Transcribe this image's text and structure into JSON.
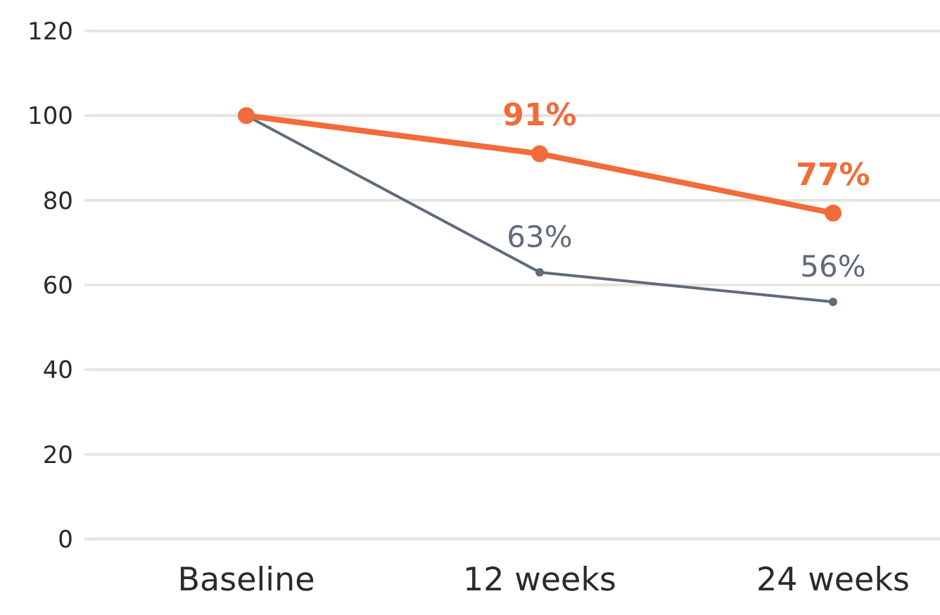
{
  "chart_data": {
    "type": "line",
    "categories": [
      "Baseline",
      "12 weeks",
      "24 weeks"
    ],
    "series": [
      {
        "color": "#f26b3a",
        "values": [
          100,
          91,
          77
        ],
        "value_labels": [
          null,
          "91%",
          "77%"
        ]
      },
      {
        "color": "#5f6b7a",
        "values": [
          100,
          63,
          56
        ],
        "value_labels": [
          null,
          "63%",
          "56%"
        ]
      }
    ],
    "ylim": [
      0,
      120
    ],
    "yticks": [
      0,
      20,
      40,
      60,
      80,
      100,
      120
    ],
    "grid": "y",
    "marker": "circle"
  }
}
